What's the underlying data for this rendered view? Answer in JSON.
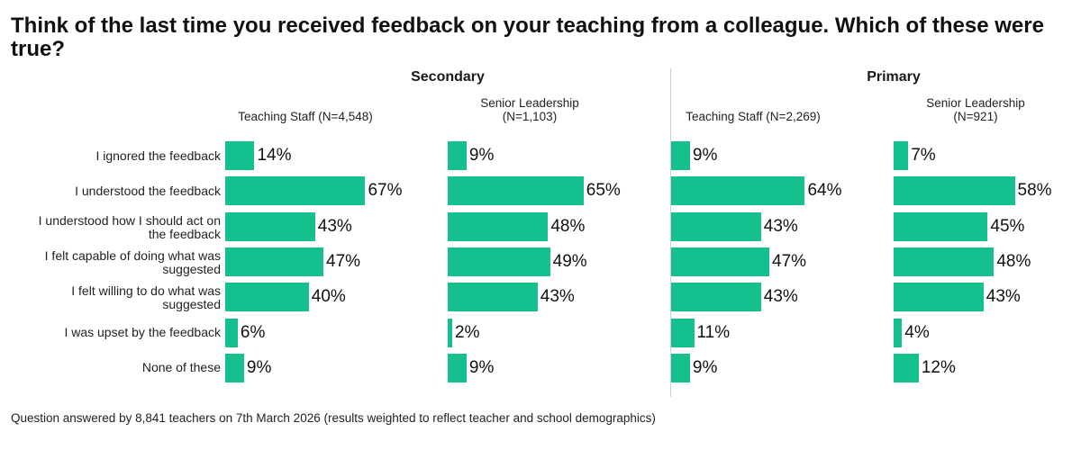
{
  "title": "Think of the last time you received feedback on your teaching from a colleague. Which of these were true?",
  "footnote": "Question answered by 8,841 teachers on 7th March 2026 (results weighted to reflect teacher and school demographics)",
  "colors": {
    "bar": "#14c08e",
    "divider": "#cfcfcf",
    "text": "#111111"
  },
  "chart_data": {
    "type": "bar",
    "orientation": "horizontal",
    "unit": "%",
    "sections": [
      "Secondary",
      "Primary"
    ],
    "categories": [
      [
        "I ignored the feedback"
      ],
      [
        "I understood the feedback"
      ],
      [
        "I understood how I should act on",
        "the feedback"
      ],
      [
        "I felt capable of doing what was",
        "suggested"
      ],
      [
        "I felt willing to do what was",
        "suggested"
      ],
      [
        "I was upset by the feedback"
      ],
      [
        "None of these"
      ]
    ],
    "series": [
      {
        "section": "Secondary",
        "name": "Teaching Staff (N=4,548)",
        "label_lines": [
          "Teaching Staff (N=4,548)"
        ],
        "values": [
          14,
          67,
          43,
          47,
          40,
          6,
          9
        ]
      },
      {
        "section": "Secondary",
        "name": "Senior Leadership (N=1,103)",
        "label_lines": [
          "Senior Leadership",
          "(N=1,103)"
        ],
        "values": [
          9,
          65,
          48,
          49,
          43,
          2,
          9
        ]
      },
      {
        "section": "Primary",
        "name": "Teaching Staff (N=2,269)",
        "label_lines": [
          "Teaching Staff (N=2,269)"
        ],
        "values": [
          9,
          64,
          43,
          47,
          43,
          11,
          9
        ]
      },
      {
        "section": "Primary",
        "name": "Senior Leadership (N=921)",
        "label_lines": [
          "Senior Leadership",
          "(N=921)"
        ],
        "values": [
          7,
          58,
          45,
          48,
          43,
          4,
          12
        ]
      }
    ],
    "xlim": [
      0,
      100
    ],
    "grid": false
  }
}
